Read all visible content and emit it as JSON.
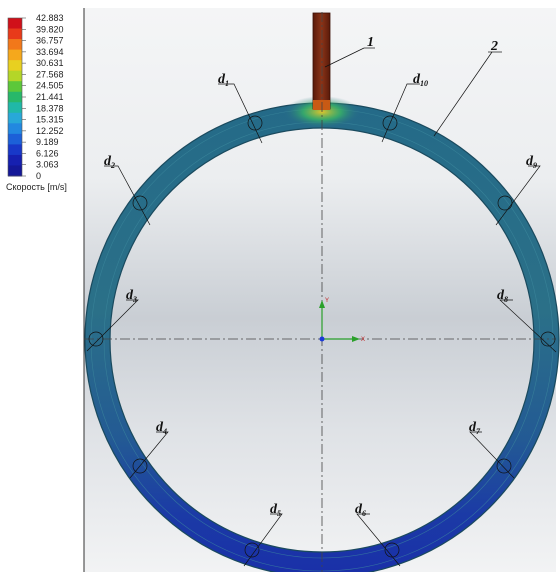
{
  "legend": {
    "title": "Скорость [m/s]",
    "ticks": [
      "42.883",
      "39.820",
      "36.757",
      "33.694",
      "30.631",
      "27.568",
      "24.505",
      "21.441",
      "18.378",
      "15.315",
      "12.252",
      "9.189",
      "6.126",
      "3.063",
      "0"
    ],
    "colors": [
      "#d0101a",
      "#e83a1a",
      "#f2781a",
      "#f5a81c",
      "#e8d020",
      "#b4d628",
      "#5cc83a",
      "#28b86a",
      "#20b8a8",
      "#28a8d8",
      "#2288e0",
      "#1c60d8",
      "#1838c8",
      "#1620b0",
      "#141898"
    ]
  },
  "callouts": {
    "part1": "1",
    "part2": "2",
    "sections": [
      {
        "base": "d",
        "sub": "1"
      },
      {
        "base": "d",
        "sub": "2"
      },
      {
        "base": "d",
        "sub": "3"
      },
      {
        "base": "d",
        "sub": "4"
      },
      {
        "base": "d",
        "sub": "5"
      },
      {
        "base": "d",
        "sub": "6"
      },
      {
        "base": "d",
        "sub": "7"
      },
      {
        "base": "d",
        "sub": "8"
      },
      {
        "base": "d",
        "sub": "9"
      },
      {
        "base": "d",
        "sub": "10"
      }
    ]
  },
  "axes": {
    "y": "Y",
    "x": "X"
  },
  "colors": {
    "ring_main": "#2a6f86",
    "ring_bottom": "#1c3da8",
    "pipe": "#7a2a12"
  }
}
